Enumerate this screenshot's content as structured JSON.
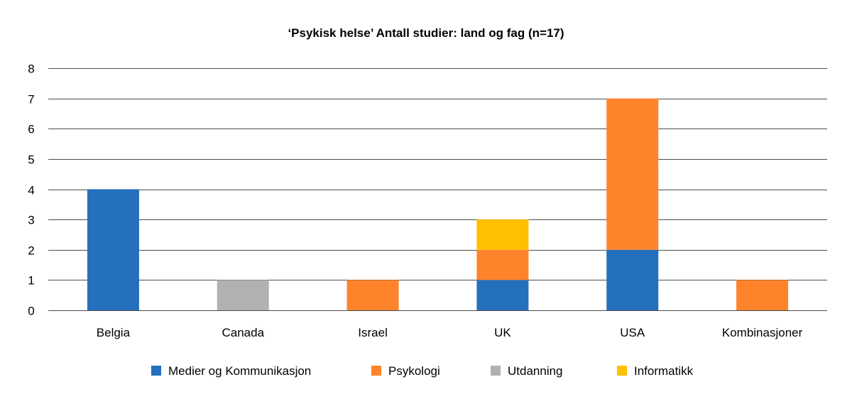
{
  "chart_data": {
    "type": "bar",
    "stacked": true,
    "title": "‘Psykisk helse’ Antall studier: land og fag (n=17)",
    "xlabel": "",
    "ylabel": "",
    "ylim": [
      0,
      8
    ],
    "yticks": [
      0,
      1,
      2,
      3,
      4,
      5,
      6,
      7,
      8
    ],
    "grid": true,
    "legend_position": "bottom",
    "categories": [
      "Belgia",
      "Canada",
      "Israel",
      "UK",
      "USA",
      "Kombinasjoner"
    ],
    "series": [
      {
        "name": "Medier og Kommunikasjon",
        "color": "#2470BC",
        "values": [
          4,
          0,
          0,
          1,
          2,
          0
        ]
      },
      {
        "name": "Psykologi",
        "color": "#FF832B",
        "values": [
          0,
          0,
          1,
          1,
          5,
          1
        ]
      },
      {
        "name": "Utdanning",
        "color": "#B1B1B1",
        "values": [
          0,
          1,
          0,
          0,
          0,
          0
        ]
      },
      {
        "name": "Informatikk",
        "color": "#FFC000",
        "values": [
          0,
          0,
          0,
          1,
          0,
          0
        ]
      }
    ]
  }
}
